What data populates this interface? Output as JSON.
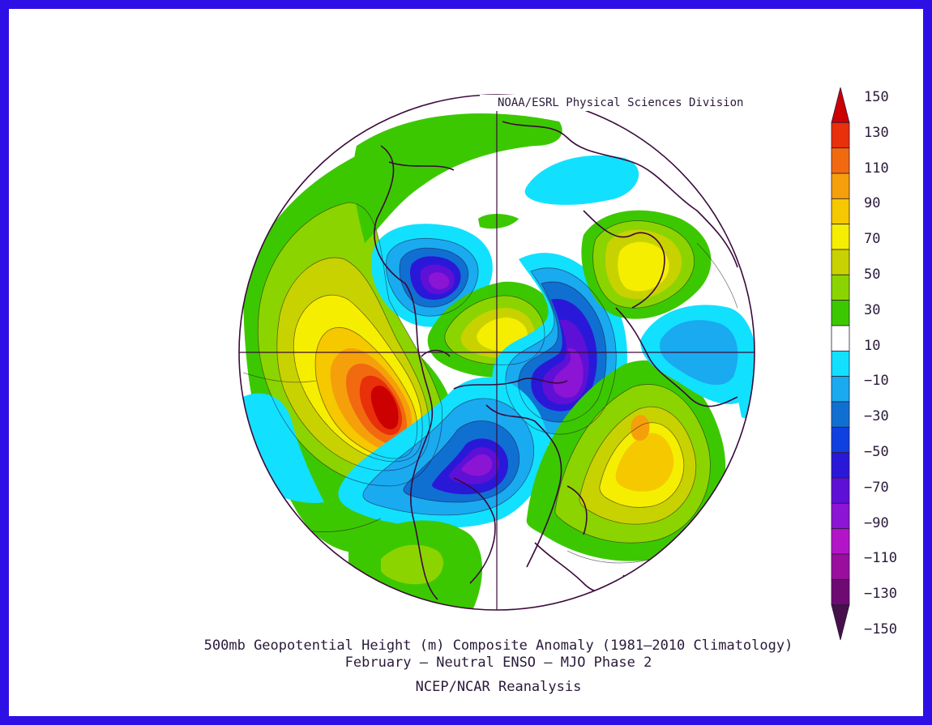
{
  "credit": "NOAA/ESRL Physical Sciences Division",
  "captions": {
    "line1": "500mb Geopotential Height (m) Composite Anomaly (1981–2010 Climatology)",
    "line2": "February – Neutral ENSO – MJO Phase 2",
    "line3": "NCEP/NCAR Reanalysis"
  },
  "colorbar": {
    "labels": [
      "150",
      "130",
      "110",
      "90",
      "70",
      "50",
      "30",
      "10",
      "−10",
      "−30",
      "−50",
      "−70",
      "−90",
      "−110",
      "−130",
      "−150"
    ],
    "colors": [
      "#cc0000",
      "#e8300a",
      "#f26a0f",
      "#f5a00a",
      "#f5c800",
      "#f5ee00",
      "#c8d200",
      "#8cd400",
      "#3cc800",
      "#ffffff",
      "#12e0ff",
      "#1aaaf0",
      "#1070d2",
      "#1040e0",
      "#2a18d8",
      "#5e10d6",
      "#8c14d4",
      "#b414c8",
      "#9a0e9e",
      "#6e0a72",
      "#46104a"
    ],
    "colors_order": "top-to-bottom"
  },
  "map": {
    "projection": "north-polar-stereographic",
    "features": [
      {
        "name": "positive-anomaly-north-pacific-west-coast",
        "sign": "positive",
        "max": 150
      },
      {
        "name": "negative-anomaly-eastern-canada",
        "sign": "negative",
        "min": -110
      },
      {
        "name": "negative-anomaly-eastern-siberia",
        "sign": "negative",
        "min": -110
      },
      {
        "name": "negative-anomaly-arctic-greenland",
        "sign": "negative",
        "min": -110
      },
      {
        "name": "positive-anomaly-north-atlantic",
        "sign": "positive",
        "max": 100
      },
      {
        "name": "positive-anomaly-europe-urals",
        "sign": "positive",
        "max": 70
      },
      {
        "name": "positive-anomaly-arctic-siberia",
        "sign": "positive",
        "max": 60
      },
      {
        "name": "negative-anomaly-central-asia",
        "sign": "negative",
        "min": -40
      },
      {
        "name": "positive-anomaly-mexico",
        "sign": "positive",
        "max": 30
      }
    ]
  }
}
